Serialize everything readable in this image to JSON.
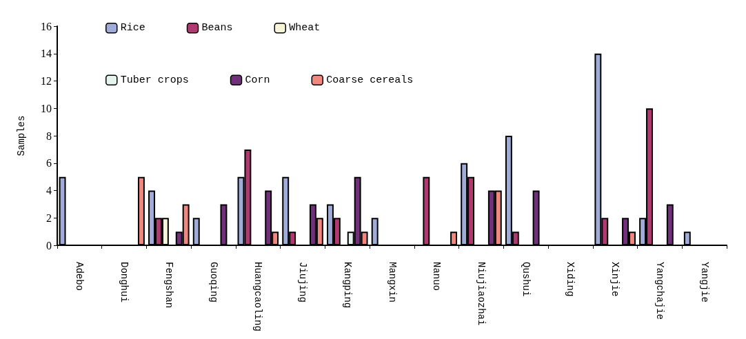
{
  "chart_data": {
    "type": "bar",
    "ylabel": "Samples",
    "categories": [
      "Adebo",
      "Donghui",
      "Fengshan",
      "Guoqing",
      "Huangcaoling",
      "Jiujing",
      "Kangping",
      "Mangxin",
      "Nanuo",
      "Niujiaozhai",
      "Qushui",
      "Xiding",
      "Xinjie",
      "Yangchajie",
      "Yangjie"
    ],
    "series": [
      {
        "name": "Rice",
        "color": "#a0acd8",
        "values": [
          5,
          0,
          4,
          2,
          5,
          5,
          3,
          2,
          0,
          6,
          8,
          0,
          14,
          2,
          1
        ]
      },
      {
        "name": "Beans",
        "color": "#b03a70",
        "values": [
          0,
          0,
          2,
          0,
          7,
          1,
          2,
          0,
          5,
          5,
          1,
          0,
          2,
          10,
          0
        ]
      },
      {
        "name": "Wheat",
        "color": "#f8f4d8",
        "values": [
          0,
          0,
          2,
          0,
          0,
          0,
          0,
          0,
          0,
          0,
          0,
          0,
          0,
          0,
          0
        ]
      },
      {
        "name": "Tuber crops",
        "color": "#e6f4ee",
        "values": [
          0,
          0,
          0,
          0,
          0,
          0,
          1,
          0,
          0,
          0,
          0,
          0,
          0,
          0,
          0
        ]
      },
      {
        "name": "Corn",
        "color": "#70307a",
        "values": [
          0,
          0,
          1,
          3,
          4,
          3,
          5,
          0,
          0,
          4,
          4,
          0,
          2,
          3,
          0
        ]
      },
      {
        "name": "Coarse cereals",
        "color": "#f08880",
        "values": [
          0,
          5,
          3,
          0,
          1,
          2,
          1,
          0,
          1,
          4,
          0,
          0,
          1,
          0,
          0
        ]
      }
    ],
    "ylim": [
      0,
      16
    ],
    "yticks": [
      0,
      2,
      4,
      6,
      8,
      10,
      12,
      14,
      16
    ],
    "grid": false,
    "legend": "top left"
  }
}
